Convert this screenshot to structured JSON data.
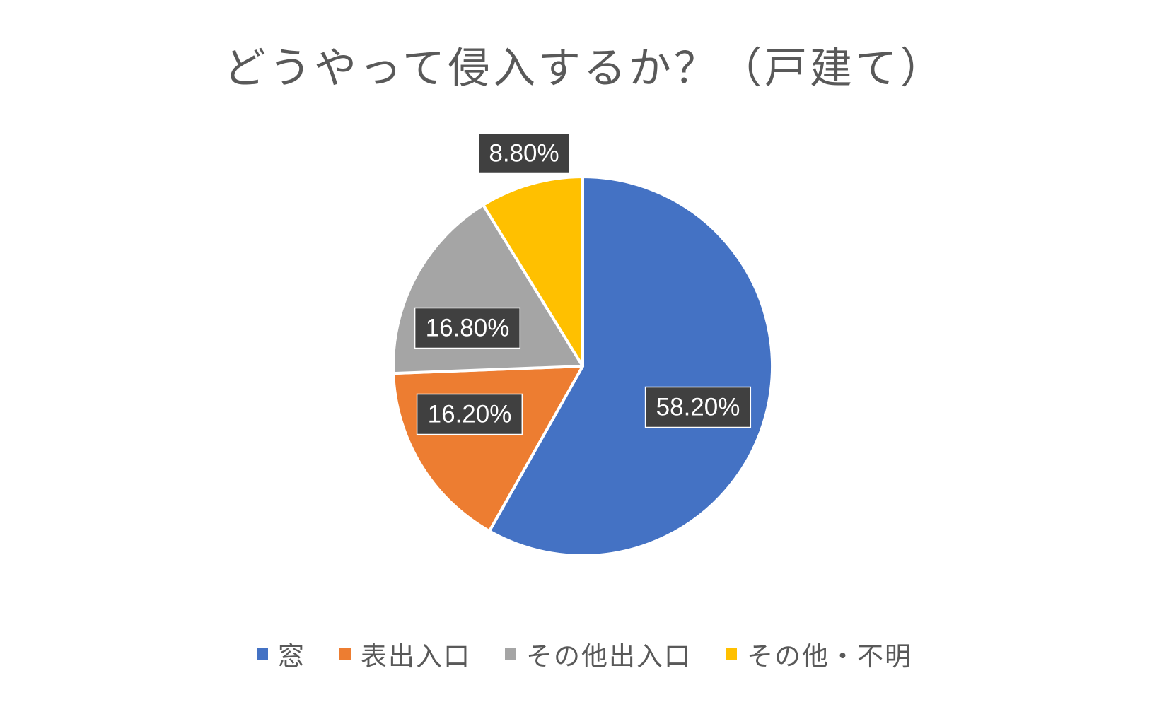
{
  "chart_data": {
    "type": "pie",
    "title": "どうやって侵入するか？（戸建て）",
    "categories": [
      "窓",
      "表出入口",
      "その他出入口",
      "その他・不明"
    ],
    "values": [
      58.2,
      16.2,
      16.8,
      8.8
    ],
    "labels": [
      "58.20%",
      "16.20%",
      "16.80%",
      "8.80%"
    ],
    "colors": [
      "#4472C4",
      "#ED7D31",
      "#A5A5A5",
      "#FFC000"
    ],
    "start_angle_deg": 0,
    "direction": "clockwise",
    "legend_position": "bottom"
  }
}
